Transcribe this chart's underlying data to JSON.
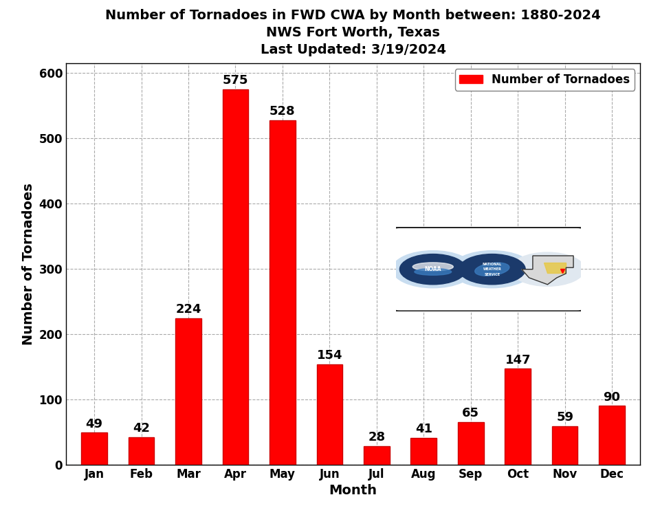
{
  "title_line1": "Number of Tornadoes in FWD CWA by Month between: 1880-2024",
  "title_line2": "NWS Fort Worth, Texas",
  "title_line3": "Last Updated: 3/19/2024",
  "months": [
    "Jan",
    "Feb",
    "Mar",
    "Apr",
    "May",
    "Jun",
    "Jul",
    "Aug",
    "Sep",
    "Oct",
    "Nov",
    "Dec"
  ],
  "values": [
    49,
    42,
    224,
    575,
    528,
    154,
    28,
    41,
    65,
    147,
    59,
    90
  ],
  "bar_color": "#FF0000",
  "bar_edgecolor": "#CC0000",
  "xlabel": "Month",
  "ylabel": "Number of Tornadoes",
  "ylim": [
    0,
    615
  ],
  "yticks": [
    0,
    100,
    200,
    300,
    400,
    500,
    600
  ],
  "legend_label": "Number of Tornadoes",
  "legend_color": "#FF0000",
  "background_color": "#FFFFFF",
  "grid_color": "#AAAAAA",
  "title_fontsize": 14,
  "axis_label_fontsize": 14,
  "tick_fontsize": 12,
  "bar_label_fontsize": 13
}
